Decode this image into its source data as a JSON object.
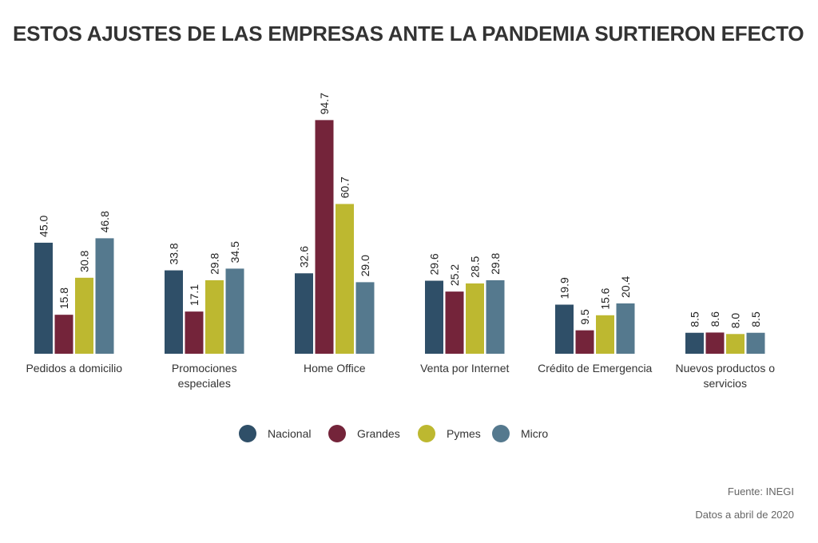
{
  "chart_data": {
    "type": "bar",
    "title": "ESTOS AJUSTES DE LAS EMPRESAS ANTE LA PANDEMIA SURTIERON EFECTO",
    "categories": [
      [
        "Pedidos a domicilio"
      ],
      [
        "Promociones",
        "especiales"
      ],
      [
        "Home Office"
      ],
      [
        "Venta por Internet"
      ],
      [
        "Crédito de Emergencia"
      ],
      [
        "Nuevos productos o",
        "servicios"
      ]
    ],
    "series": [
      {
        "name": "Nacional",
        "color": "#2f4f68",
        "values": [
          45.0,
          33.8,
          32.6,
          29.6,
          19.9,
          8.5
        ]
      },
      {
        "name": "Grandes",
        "color": "#74243a",
        "values": [
          15.8,
          17.1,
          94.7,
          25.2,
          9.5,
          8.6
        ]
      },
      {
        "name": "Pymes",
        "color": "#bdb830",
        "values": [
          30.8,
          29.8,
          60.7,
          28.5,
          15.6,
          8.0
        ]
      },
      {
        "name": "Micro",
        "color": "#55798e",
        "values": [
          46.8,
          34.5,
          29.0,
          29.8,
          20.4,
          8.5
        ]
      }
    ],
    "xlabel": "",
    "ylabel": "",
    "ylim": [
      0,
      100
    ],
    "grid": false,
    "legend": "bottom-center",
    "value_format": "one-decimal"
  },
  "footer": {
    "source": "Fuente: INEGI",
    "note": "Datos a abril de 2020"
  }
}
